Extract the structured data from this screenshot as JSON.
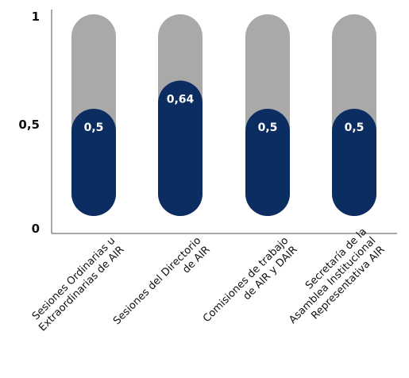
{
  "chart_data": {
    "type": "bar",
    "categories": [
      [
        "Sesiones Ordinarias u",
        "Extraordinarias de AIR"
      ],
      [
        "Sesiones del Directorio",
        "de AIR"
      ],
      [
        "Comisiones de trabajo",
        "de AIR y DAIR"
      ],
      [
        "Secretaría de la",
        "Asamblea Institucional",
        "Representativa AIR"
      ]
    ],
    "values": [
      0.5,
      0.64,
      0.5,
      0.5
    ],
    "value_labels": [
      "0,5",
      "0,64",
      "0,5",
      "0,5"
    ],
    "ylim": [
      0,
      1
    ],
    "yticks": [
      {
        "value": 0,
        "label": "0"
      },
      {
        "value": 0.5,
        "label": "0,5"
      },
      {
        "value": 1,
        "label": "1"
      }
    ],
    "grid": false,
    "colors": {
      "value": "#0c2d62",
      "remainder": "#a9a9a9",
      "axis": "#8a8a8a"
    }
  }
}
